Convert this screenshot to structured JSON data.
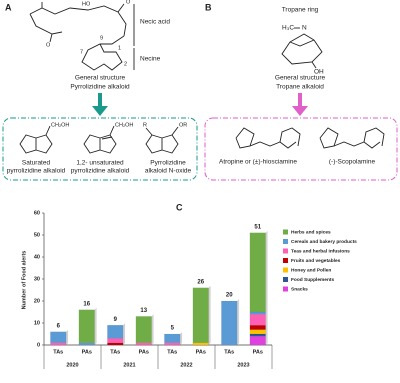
{
  "panel_a": {
    "label": "A",
    "necic_acid": "Necic acid",
    "necine": "Necine",
    "atoms": [
      "HO",
      "O",
      "7",
      "9",
      "1",
      "2",
      "O"
    ],
    "caption": [
      "General structure",
      "Pyrrolizidine alkaloid"
    ],
    "examples": [
      {
        "group": "CH₂OH",
        "name": [
          "Saturated",
          "pyrrolizidine alkaloid"
        ]
      },
      {
        "group": "CH₂OH",
        "name": [
          "1,2- unsaturated",
          "pyrrolizidine alkaloid"
        ]
      },
      {
        "group": "OR",
        "extra": "R",
        "name": [
          "Pyrrolizidine",
          "alkaloid N-oxide"
        ]
      }
    ]
  },
  "panel_b": {
    "label": "B",
    "title": "Tropane ring",
    "atoms": [
      "H₃C",
      "N",
      "OH"
    ],
    "caption": [
      "General structure",
      "Tropane alkaloid"
    ],
    "examples": [
      "Atropine or (±)-hiosciamine",
      "(-)-Scopolamine"
    ]
  },
  "chart_data": {
    "type": "bar",
    "label": "C",
    "y_label": "Number of Food alerts",
    "categories": [
      "TAs",
      "PAs",
      "TAs",
      "PAs",
      "TAs",
      "PAs",
      "TAs",
      "PAs"
    ],
    "groups": [
      "2020",
      "2021",
      "2022",
      "2023"
    ],
    "totals": [
      6,
      16,
      9,
      13,
      5,
      26,
      20,
      51
    ],
    "ylim": [
      0,
      60
    ],
    "yticks": [
      0,
      10,
      20,
      30,
      40,
      50,
      60
    ],
    "stacked": true,
    "series": [
      {
        "name": "Herbs and spices",
        "color": "#70ad47",
        "values": [
          0,
          15,
          0,
          12,
          0,
          25,
          0,
          36
        ]
      },
      {
        "name": "Cereals and bakery products",
        "color": "#5b9bd5",
        "values": [
          5,
          1,
          6,
          0,
          4,
          0,
          20,
          1
        ]
      },
      {
        "name": "Teas and herbal infusions",
        "color": "#ff5fb4",
        "values": [
          1,
          0,
          2,
          1,
          1,
          0,
          0,
          5
        ]
      },
      {
        "name": "Fruits and vegetables",
        "color": "#c00000",
        "values": [
          0,
          0,
          1,
          0,
          0,
          0,
          0,
          2
        ]
      },
      {
        "name": "Honey and Pollen",
        "color": "#ffc000",
        "values": [
          0,
          0,
          0,
          0,
          0,
          1,
          0,
          2
        ]
      },
      {
        "name": "Food Supplements",
        "color": "#2f5597",
        "values": [
          0,
          0,
          0,
          0,
          0,
          0,
          0,
          1
        ]
      },
      {
        "name": "Snacks",
        "color": "#e040e0",
        "values": [
          0,
          0,
          0,
          0,
          0,
          0,
          0,
          4
        ]
      }
    ]
  }
}
